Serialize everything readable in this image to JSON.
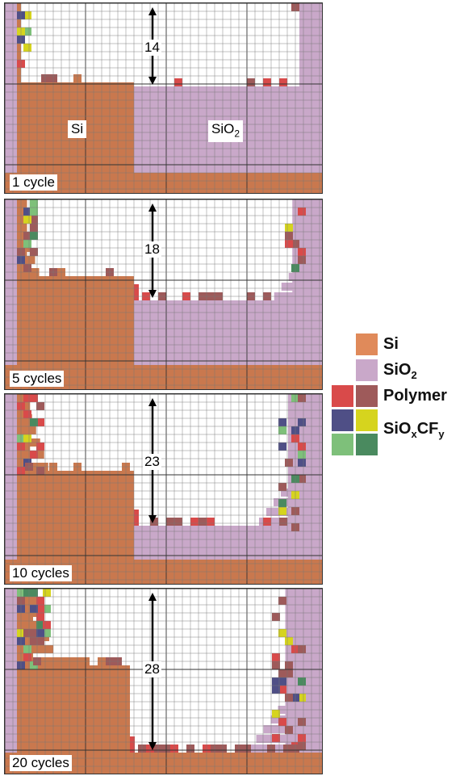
{
  "colors": {
    "si": "#c9784e",
    "sio2": "#c9a8c9",
    "vacuum": "#ffffff",
    "grid": "#777777",
    "polymer_a": "#d94a4a",
    "polymer_b": "#9e5a5a",
    "sioxcfy_a": "#4f4f86",
    "sioxcfy_b": "#d6d41e",
    "sioxcfy_c": "#7ec07a",
    "sioxcfy_d": "#4a8a5f"
  },
  "labels": {
    "si": "Si",
    "sio2_base": "SiO",
    "sio2_sub": "2"
  },
  "panels": [
    {
      "cycle_label": "1 cycle",
      "depth_label": "14"
    },
    {
      "cycle_label": "5 cycles",
      "depth_label": "18"
    },
    {
      "cycle_label": "10 cycles",
      "depth_label": "23"
    },
    {
      "cycle_label": "20 cycles",
      "depth_label": "28"
    }
  ],
  "legend": {
    "si": "Si",
    "sio2_base": "SiO",
    "sio2_sub": "2",
    "polymer": "Polymer",
    "sioxcfy_a": "SiO",
    "sioxcfy_b": "x",
    "sioxcfy_c": "CF",
    "sioxcfy_d": "y"
  }
}
